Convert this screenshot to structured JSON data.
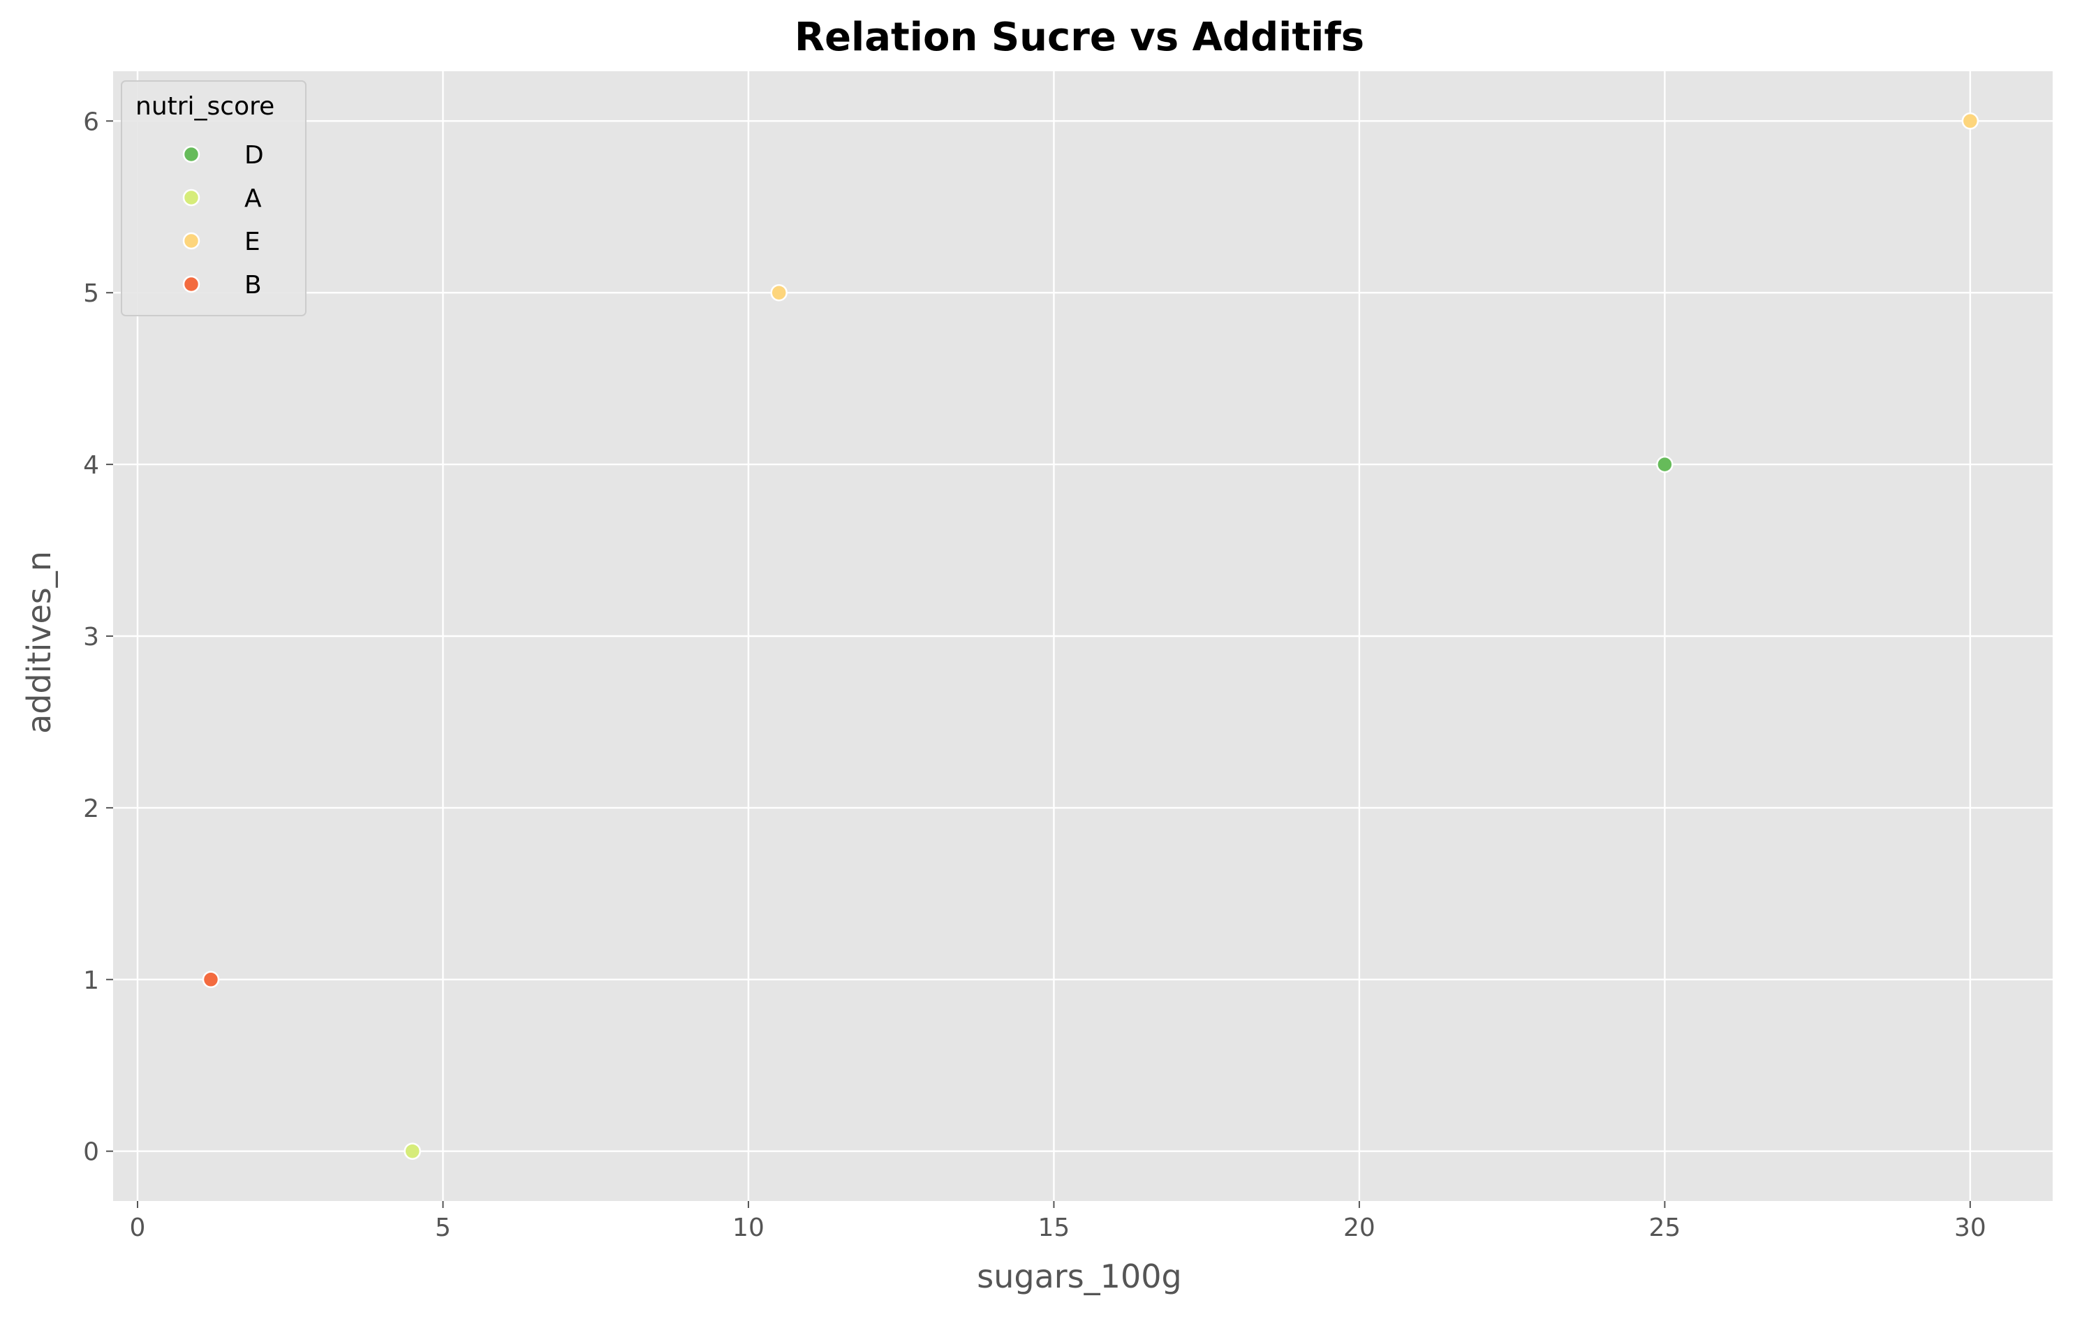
{
  "chart_data": {
    "type": "scatter",
    "title": "Relation Sucre vs Additifs",
    "xlabel": "sugars_100g",
    "ylabel": "additives_n",
    "xlim": [
      -0.4,
      31.35
    ],
    "ylim": [
      -0.29,
      6.29
    ],
    "xticks": [
      0,
      5,
      10,
      15,
      20,
      25,
      30
    ],
    "yticks": [
      0,
      1,
      2,
      3,
      4,
      5,
      6
    ],
    "grid": true,
    "legend": {
      "title": "nutri_score",
      "placement": "top-left",
      "entries": [
        {
          "label": "D",
          "color": "#66bb5a"
        },
        {
          "label": "A",
          "color": "#d6ec7a"
        },
        {
          "label": "E",
          "color": "#fdd57c"
        },
        {
          "label": "B",
          "color": "#f36b3f"
        }
      ]
    },
    "series": [
      {
        "name": "D",
        "color": "#66bb5a",
        "points": [
          {
            "x": 25,
            "y": 4
          }
        ]
      },
      {
        "name": "A",
        "color": "#d6ec7a",
        "points": [
          {
            "x": 4.5,
            "y": 0
          }
        ]
      },
      {
        "name": "E",
        "color": "#fdd57c",
        "points": [
          {
            "x": 10.5,
            "y": 5
          },
          {
            "x": 30,
            "y": 6
          }
        ]
      },
      {
        "name": "B",
        "color": "#f36b3f",
        "points": [
          {
            "x": 1.2,
            "y": 1
          }
        ]
      }
    ],
    "plot_background": "#e5e5e5",
    "grid_color": "#ffffff"
  }
}
